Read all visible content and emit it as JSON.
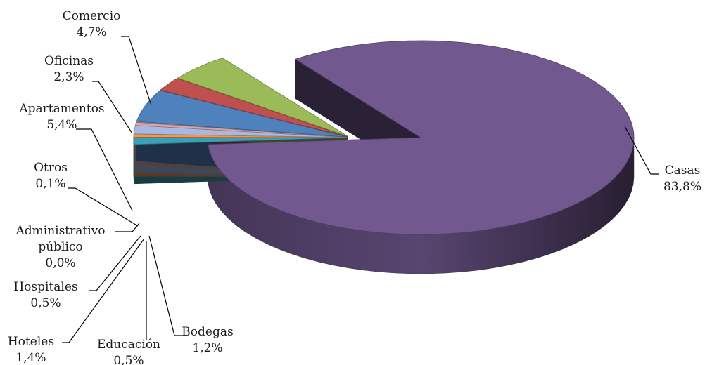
{
  "chart_data": {
    "type": "pie",
    "title": "",
    "style": "3d-exploded",
    "legend": "none",
    "slices": [
      {
        "name": "Casas",
        "value": 83.8,
        "label": "83,8%",
        "color": "#71588f"
      },
      {
        "name": "Bodegas",
        "value": 1.2,
        "label": "1,2%",
        "color": "#3b9fb7"
      },
      {
        "name": "Educación",
        "value": 0.5,
        "label": "0,5%",
        "color": "#f79646"
      },
      {
        "name": "Hoteles",
        "value": 1.4,
        "label": "1,4%",
        "color": "#a7b9e3"
      },
      {
        "name": "Hospitales",
        "value": 0.5,
        "label": "0,5%",
        "color": "#d9a5a4"
      },
      {
        "name": "Administrativo público",
        "value": 0.0,
        "label": "0,0%",
        "color": "#c4d69e"
      },
      {
        "name": "Otros",
        "value": 0.1,
        "label": "0,1%",
        "color": "#b3a2c7"
      },
      {
        "name": "Apartamentos",
        "value": 5.4,
        "label": "5,4%",
        "color": "#4f81bd"
      },
      {
        "name": "Oficinas",
        "value": 2.3,
        "label": "2,3%",
        "color": "#c0504d"
      },
      {
        "name": "Comercio",
        "value": 4.7,
        "label": "4,7%",
        "color": "#9bbb59"
      }
    ]
  }
}
